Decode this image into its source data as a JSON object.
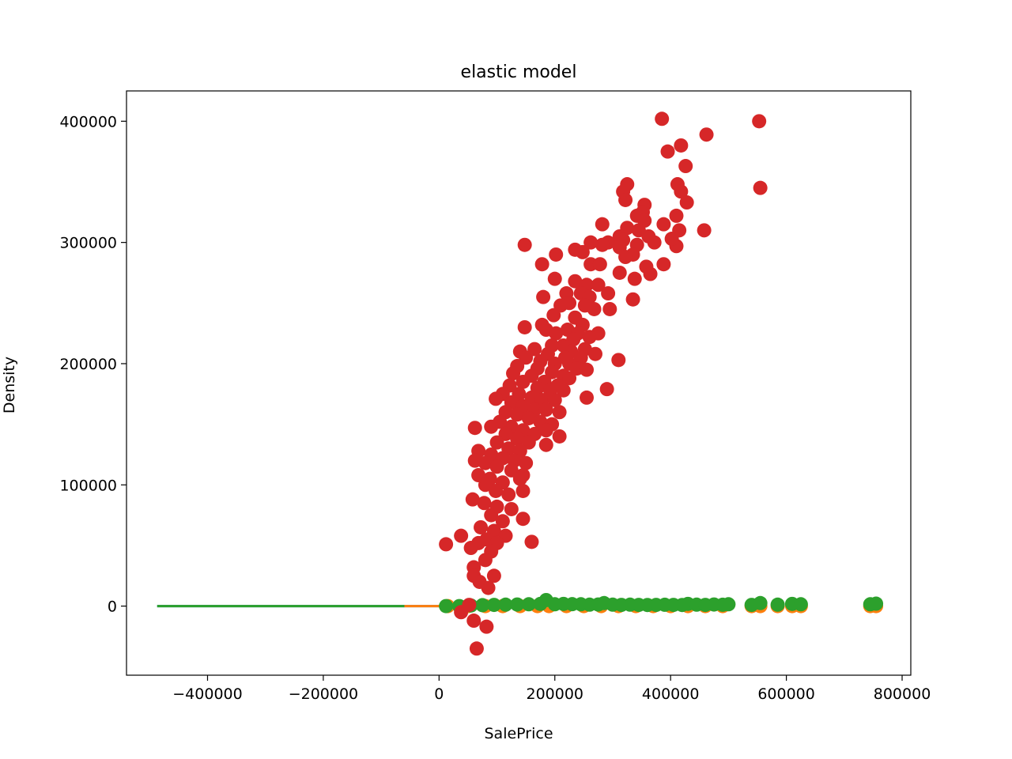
{
  "chart_data": {
    "type": "scatter",
    "title": "elastic model",
    "xlabel": "SalePrice",
    "ylabel": "Density",
    "xlim": [
      -540000,
      815000
    ],
    "ylim": [
      -57000,
      425000
    ],
    "xticks": [
      -400000,
      -200000,
      0,
      200000,
      400000,
      600000,
      800000
    ],
    "xtick_labels": [
      "−400000",
      "−200000",
      "0",
      "200000",
      "400000",
      "600000",
      "800000"
    ],
    "yticks": [
      0,
      100000,
      200000,
      300000,
      400000
    ],
    "ytick_labels": [
      "0",
      "100000",
      "200000",
      "300000",
      "400000"
    ],
    "grid": false,
    "legend": "none",
    "series": [
      {
        "kind": "line",
        "color": "#1f77b4",
        "x": [
          -487000,
          243000
        ],
        "y": [
          0,
          0
        ]
      },
      {
        "kind": "line",
        "color": "#ff7f0e",
        "x": [
          -60000,
          243000
        ],
        "y": [
          0,
          0
        ]
      },
      {
        "kind": "line",
        "color": "#2ca02c",
        "x": [
          -487000,
          -60000
        ],
        "y": [
          0,
          0
        ]
      },
      {
        "kind": "scatter",
        "color": "#ff7f0e",
        "points": [
          [
            15000,
            0
          ],
          [
            50000,
            0
          ],
          [
            80000,
            0
          ],
          [
            110000,
            0
          ],
          [
            140000,
            0
          ],
          [
            170000,
            0
          ],
          [
            190000,
            0
          ],
          [
            220000,
            0
          ],
          [
            250000,
            0
          ],
          [
            280000,
            0
          ],
          [
            310000,
            0
          ],
          [
            340000,
            0
          ],
          [
            370000,
            0
          ],
          [
            400000,
            0
          ],
          [
            430000,
            0
          ],
          [
            460000,
            0
          ],
          [
            490000,
            0
          ],
          [
            540000,
            0
          ],
          [
            555000,
            0
          ],
          [
            585000,
            0
          ],
          [
            610000,
            0
          ],
          [
            625000,
            0
          ],
          [
            745000,
            0
          ],
          [
            755000,
            0
          ]
        ]
      },
      {
        "kind": "scatter",
        "color": "#2ca02c",
        "points": [
          [
            12000,
            0
          ],
          [
            35000,
            0
          ],
          [
            55000,
            500
          ],
          [
            75000,
            800
          ],
          [
            95000,
            1000
          ],
          [
            115000,
            1200
          ],
          [
            135000,
            1300
          ],
          [
            155000,
            1500
          ],
          [
            175000,
            1800
          ],
          [
            185000,
            5000
          ],
          [
            200000,
            1500
          ],
          [
            215000,
            1800
          ],
          [
            230000,
            1600
          ],
          [
            245000,
            1500
          ],
          [
            260000,
            1200
          ],
          [
            275000,
            1300
          ],
          [
            285000,
            2500
          ],
          [
            300000,
            1200
          ],
          [
            315000,
            1000
          ],
          [
            330000,
            1200
          ],
          [
            345000,
            1000
          ],
          [
            360000,
            900
          ],
          [
            375000,
            1000
          ],
          [
            390000,
            1100
          ],
          [
            405000,
            1000
          ],
          [
            420000,
            900
          ],
          [
            430000,
            1800
          ],
          [
            445000,
            1200
          ],
          [
            460000,
            1000
          ],
          [
            475000,
            1300
          ],
          [
            490000,
            1100
          ],
          [
            500000,
            1500
          ],
          [
            540000,
            1000
          ],
          [
            555000,
            2500
          ],
          [
            585000,
            1200
          ],
          [
            610000,
            1800
          ],
          [
            625000,
            1500
          ],
          [
            745000,
            1500
          ],
          [
            755000,
            2000
          ]
        ]
      },
      {
        "kind": "scatter",
        "color": "#d62728",
        "points": [
          [
            385000,
            402000
          ],
          [
            553000,
            400000
          ],
          [
            462000,
            389000
          ],
          [
            395000,
            375000
          ],
          [
            418000,
            380000
          ],
          [
            426000,
            363000
          ],
          [
            555000,
            345000
          ],
          [
            325000,
            348000
          ],
          [
            412000,
            348000
          ],
          [
            418000,
            342000
          ],
          [
            318000,
            342000
          ],
          [
            322000,
            335000
          ],
          [
            355000,
            331000
          ],
          [
            428000,
            333000
          ],
          [
            352000,
            325000
          ],
          [
            410000,
            322000
          ],
          [
            342000,
            322000
          ],
          [
            355000,
            318000
          ],
          [
            388000,
            315000
          ],
          [
            282000,
            315000
          ],
          [
            325000,
            312000
          ],
          [
            415000,
            310000
          ],
          [
            458000,
            310000
          ],
          [
            312000,
            305000
          ],
          [
            318000,
            302000
          ],
          [
            362000,
            305000
          ],
          [
            345000,
            310000
          ],
          [
            372000,
            300000
          ],
          [
            410000,
            297000
          ],
          [
            402000,
            303000
          ],
          [
            292000,
            300000
          ],
          [
            282000,
            298000
          ],
          [
            262000,
            300000
          ],
          [
            312000,
            296000
          ],
          [
            342000,
            298000
          ],
          [
            148000,
            298000
          ],
          [
            335000,
            290000
          ],
          [
            322000,
            288000
          ],
          [
            248000,
            292000
          ],
          [
            235000,
            294000
          ],
          [
            202000,
            290000
          ],
          [
            358000,
            280000
          ],
          [
            388000,
            282000
          ],
          [
            365000,
            274000
          ],
          [
            178000,
            282000
          ],
          [
            262000,
            282000
          ],
          [
            278000,
            282000
          ],
          [
            312000,
            275000
          ],
          [
            338000,
            270000
          ],
          [
            200000,
            270000
          ],
          [
            235000,
            268000
          ],
          [
            255000,
            265000
          ],
          [
            275000,
            265000
          ],
          [
            220000,
            258000
          ],
          [
            245000,
            258000
          ],
          [
            260000,
            255000
          ],
          [
            292000,
            258000
          ],
          [
            180000,
            255000
          ],
          [
            225000,
            250000
          ],
          [
            252000,
            248000
          ],
          [
            268000,
            245000
          ],
          [
            295000,
            245000
          ],
          [
            335000,
            253000
          ],
          [
            210000,
            248000
          ],
          [
            198000,
            240000
          ],
          [
            235000,
            238000
          ],
          [
            248000,
            232000
          ],
          [
            222000,
            228000
          ],
          [
            178000,
            232000
          ],
          [
            148000,
            230000
          ],
          [
            185000,
            228000
          ],
          [
            202000,
            225000
          ],
          [
            240000,
            225000
          ],
          [
            275000,
            225000
          ],
          [
            260000,
            222000
          ],
          [
            232000,
            220000
          ],
          [
            215000,
            215000
          ],
          [
            195000,
            215000
          ],
          [
            165000,
            212000
          ],
          [
            140000,
            210000
          ],
          [
            188000,
            208000
          ],
          [
            228000,
            210000
          ],
          [
            252000,
            212000
          ],
          [
            270000,
            208000
          ],
          [
            218000,
            205000
          ],
          [
            245000,
            205000
          ],
          [
            150000,
            205000
          ],
          [
            175000,
            202000
          ],
          [
            200000,
            200000
          ],
          [
            225000,
            200000
          ],
          [
            310000,
            203000
          ],
          [
            238000,
            196000
          ],
          [
            255000,
            195000
          ],
          [
            135000,
            198000
          ],
          [
            170000,
            196000
          ],
          [
            195000,
            193000
          ],
          [
            215000,
            190000
          ],
          [
            128000,
            192000
          ],
          [
            160000,
            190000
          ],
          [
            182000,
            185000
          ],
          [
            205000,
            182000
          ],
          [
            225000,
            188000
          ],
          [
            145000,
            185000
          ],
          [
            122000,
            182000
          ],
          [
            170000,
            180000
          ],
          [
            192000,
            178000
          ],
          [
            215000,
            178000
          ],
          [
            290000,
            179000
          ],
          [
            110000,
            175000
          ],
          [
            138000,
            175000
          ],
          [
            160000,
            172000
          ],
          [
            178000,
            170000
          ],
          [
            200000,
            170000
          ],
          [
            98000,
            171000
          ],
          [
            255000,
            172000
          ],
          [
            125000,
            168000
          ],
          [
            145000,
            165000
          ],
          [
            165000,
            162000
          ],
          [
            185000,
            162000
          ],
          [
            208000,
            160000
          ],
          [
            115000,
            160000
          ],
          [
            135000,
            158000
          ],
          [
            155000,
            155000
          ],
          [
            175000,
            152000
          ],
          [
            105000,
            152000
          ],
          [
            125000,
            148000
          ],
          [
            145000,
            145000
          ],
          [
            165000,
            142000
          ],
          [
            195000,
            150000
          ],
          [
            185000,
            145000
          ],
          [
            208000,
            140000
          ],
          [
            90000,
            148000
          ],
          [
            62000,
            147000
          ],
          [
            115000,
            142000
          ],
          [
            135000,
            138000
          ],
          [
            155000,
            135000
          ],
          [
            100000,
            135000
          ],
          [
            120000,
            130000
          ],
          [
            140000,
            128000
          ],
          [
            185000,
            133000
          ],
          [
            68000,
            128000
          ],
          [
            90000,
            125000
          ],
          [
            110000,
            122000
          ],
          [
            130000,
            120000
          ],
          [
            150000,
            118000
          ],
          [
            62000,
            120000
          ],
          [
            80000,
            118000
          ],
          [
            100000,
            115000
          ],
          [
            125000,
            112000
          ],
          [
            145000,
            108000
          ],
          [
            68000,
            108000
          ],
          [
            88000,
            105000
          ],
          [
            110000,
            102000
          ],
          [
            140000,
            105000
          ],
          [
            80000,
            100000
          ],
          [
            98000,
            95000
          ],
          [
            120000,
            92000
          ],
          [
            145000,
            95000
          ],
          [
            58000,
            88000
          ],
          [
            78000,
            85000
          ],
          [
            100000,
            82000
          ],
          [
            125000,
            80000
          ],
          [
            90000,
            75000
          ],
          [
            110000,
            70000
          ],
          [
            145000,
            72000
          ],
          [
            72000,
            65000
          ],
          [
            95000,
            62000
          ],
          [
            115000,
            58000
          ],
          [
            38000,
            58000
          ],
          [
            82000,
            55000
          ],
          [
            100000,
            52000
          ],
          [
            68000,
            52000
          ],
          [
            160000,
            53000
          ],
          [
            55000,
            48000
          ],
          [
            12000,
            51000
          ],
          [
            90000,
            45000
          ],
          [
            80000,
            38000
          ],
          [
            60000,
            32000
          ],
          [
            95000,
            25000
          ],
          [
            60000,
            25000
          ],
          [
            70000,
            20000
          ],
          [
            85000,
            15000
          ],
          [
            52000,
            1000
          ],
          [
            38000,
            -5000
          ],
          [
            60000,
            -12000
          ],
          [
            82000,
            -17000
          ],
          [
            65000,
            -35000
          ]
        ]
      }
    ]
  }
}
